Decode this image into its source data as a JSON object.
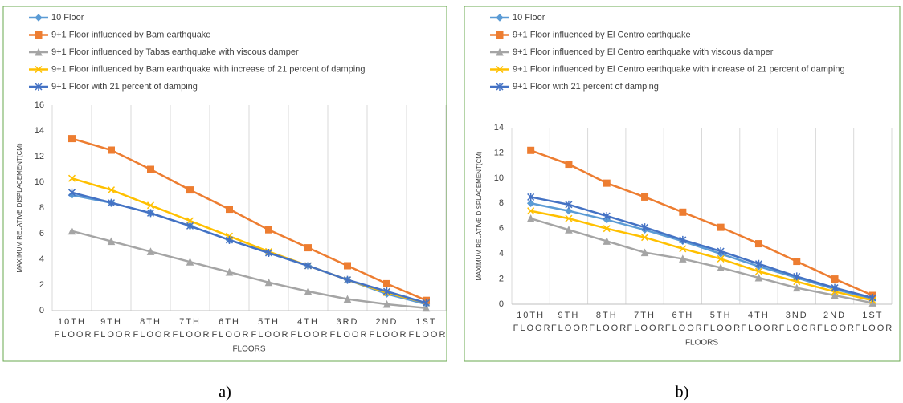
{
  "chart_data": [
    {
      "type": "line",
      "caption": "a)",
      "x_label": "FLOORS",
      "y_label": "MAXIMUM RELATIVE DISPLACEMENT(CM)",
      "categories": [
        "10TH FLOOR",
        "9TH FLOOR",
        "8TH FLOOR",
        "7TH FLOOR",
        "6TH FLOOR",
        "5TH FLOOR",
        "4TH FLOOR",
        "3RD FLOOR",
        "2ND FLOOR",
        "1ST FLOOR"
      ],
      "ylim": [
        0,
        16
      ],
      "yticks": [
        0,
        2,
        4,
        6,
        8,
        10,
        12,
        14,
        16
      ],
      "grid": true,
      "legend": "top-left",
      "series": [
        {
          "name": "10 Floor",
          "color": "#5b9bd5",
          "marker": "diamond",
          "values": [
            9.0,
            8.4,
            7.6,
            6.6,
            5.5,
            4.5,
            3.5,
            2.4,
            1.3,
            0.5
          ]
        },
        {
          "name": "9+1 Floor influenced by Bam earthquake",
          "color": "#ed7d31",
          "marker": "square",
          "values": [
            13.4,
            12.5,
            11.0,
            9.4,
            7.9,
            6.3,
            4.9,
            3.5,
            2.1,
            0.8
          ]
        },
        {
          "name": "9+1 Floor influenced by Tabas earthquake with viscous damper",
          "color": "#a5a5a5",
          "marker": "triangle",
          "values": [
            6.2,
            5.4,
            4.6,
            3.8,
            3.0,
            2.2,
            1.5,
            0.9,
            0.5,
            0.2
          ]
        },
        {
          "name": "9+1 Floor influenced by Bam earthquake with increase of 21 percent of damping",
          "color": "#ffc000",
          "marker": "x",
          "values": [
            10.3,
            9.4,
            8.2,
            7.0,
            5.8,
            4.6,
            3.5,
            2.4,
            1.4,
            0.6
          ]
        },
        {
          "name": "9+1 Floor with 21 percent of damping",
          "color": "#4472c4",
          "marker": "star",
          "values": [
            9.2,
            8.4,
            7.6,
            6.6,
            5.5,
            4.5,
            3.5,
            2.4,
            1.5,
            0.6
          ]
        }
      ]
    },
    {
      "type": "line",
      "caption": "b)",
      "x_label": "FLOORS",
      "y_label": "MAXIMUM RELATIVE DISPLACEMENT(CM)",
      "categories": [
        "10TH FLOOR",
        "9TH FLOOR",
        "8TH FLOOR",
        "7TH FLOOR",
        "6TH FLOOR",
        "5TH FLOOR",
        "4TH FLOOR",
        "3ND FLOOR",
        "2ND FLOOR",
        "1ST FLOOR"
      ],
      "ylim": [
        0,
        14
      ],
      "yticks": [
        0,
        2,
        4,
        6,
        8,
        10,
        12,
        14
      ],
      "grid": true,
      "legend": "top-left",
      "series": [
        {
          "name": "10 Floor",
          "color": "#5b9bd5",
          "marker": "diamond",
          "values": [
            8.0,
            7.4,
            6.7,
            5.9,
            5.0,
            4.0,
            3.0,
            2.1,
            1.2,
            0.4
          ]
        },
        {
          "name": "9+1 Floor influenced by El Centro earthquake",
          "color": "#ed7d31",
          "marker": "square",
          "values": [
            12.2,
            11.1,
            9.6,
            8.5,
            7.3,
            6.1,
            4.8,
            3.4,
            2.0,
            0.7
          ]
        },
        {
          "name": "9+1 Floor influenced by El Centro earthquake with viscous damper",
          "color": "#a5a5a5",
          "marker": "triangle",
          "values": [
            6.8,
            5.9,
            5.0,
            4.1,
            3.6,
            2.9,
            2.1,
            1.3,
            0.7,
            0.1
          ]
        },
        {
          "name": "9+1 Floor influenced by El Centro earthquake with increase of 21 percent of damping",
          "color": "#ffc000",
          "marker": "x",
          "values": [
            7.4,
            6.8,
            6.0,
            5.3,
            4.4,
            3.6,
            2.6,
            1.8,
            1.0,
            0.3
          ]
        },
        {
          "name": "9+1 Floor with 21 percent of damping",
          "color": "#4472c4",
          "marker": "star",
          "values": [
            8.5,
            7.9,
            7.0,
            6.1,
            5.1,
            4.2,
            3.2,
            2.2,
            1.3,
            0.5
          ]
        }
      ]
    }
  ]
}
